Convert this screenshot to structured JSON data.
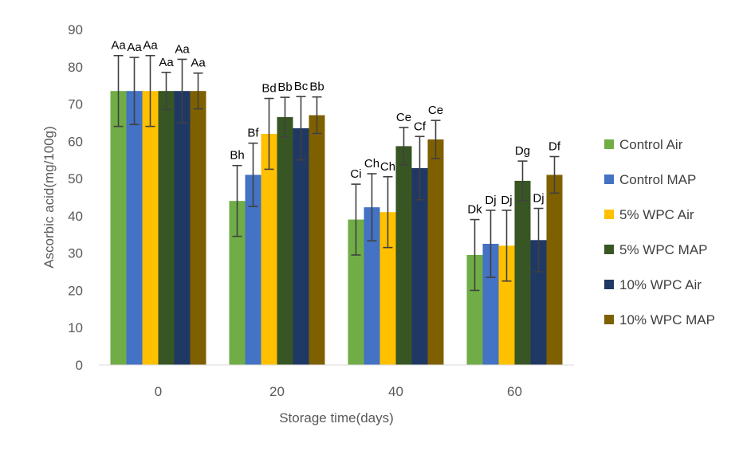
{
  "chart_data": {
    "type": "bar",
    "title": "",
    "xlabel": "Storage time(days)",
    "ylabel": "Ascorbic acid(mg/100g)",
    "ylim": [
      0,
      90
    ],
    "yticks": [
      0,
      10,
      20,
      30,
      40,
      50,
      60,
      70,
      80,
      90
    ],
    "grid": false,
    "legend_position": "right",
    "categories": [
      "0",
      "20",
      "40",
      "60"
    ],
    "series": [
      {
        "name": "Control Air",
        "color": "#70AD47",
        "values": [
          73.5,
          44,
          39,
          29.5
        ],
        "errors": [
          9.5,
          9.5,
          9.5,
          9.5
        ],
        "labels": [
          "Aa",
          "Bh",
          "Ci",
          "Dk"
        ]
      },
      {
        "name": "Control MAP",
        "color": "#4472C4",
        "values": [
          73.5,
          51,
          42.3,
          32.5
        ],
        "errors": [
          9,
          8.5,
          9,
          9
        ],
        "labels": [
          "Aa",
          "Bf",
          "Ch",
          "Dj"
        ]
      },
      {
        "name": "5% WPC Air",
        "color": "#FFC000",
        "values": [
          73.5,
          62,
          41,
          32
        ],
        "errors": [
          9.5,
          9.5,
          9.5,
          9.5
        ],
        "labels": [
          "Aa",
          "Bd",
          "Ch",
          "Dj"
        ]
      },
      {
        "name": "5% WPC MAP",
        "color": "#375623",
        "values": [
          73.5,
          66.5,
          58.7,
          49.4
        ],
        "errors": [
          5,
          5.3,
          5,
          5.3
        ],
        "labels": [
          "Aa",
          "Bb",
          "Ce",
          "Dg"
        ]
      },
      {
        "name": "10% WPC Air",
        "color": "#203864",
        "values": [
          73.5,
          63.5,
          52.8,
          33.5
        ],
        "errors": [
          8.5,
          8.5,
          8.5,
          8.5
        ],
        "labels": [
          "Aa",
          "Bc",
          "Cf",
          "Dj"
        ]
      },
      {
        "name": "10% WPC MAP",
        "color": "#7F6000",
        "values": [
          73.5,
          67,
          60.5,
          51
        ],
        "errors": [
          4.8,
          4.9,
          5.1,
          4.9
        ],
        "labels": [
          "Aa",
          "Bb",
          "Ce",
          "Df"
        ]
      }
    ]
  }
}
